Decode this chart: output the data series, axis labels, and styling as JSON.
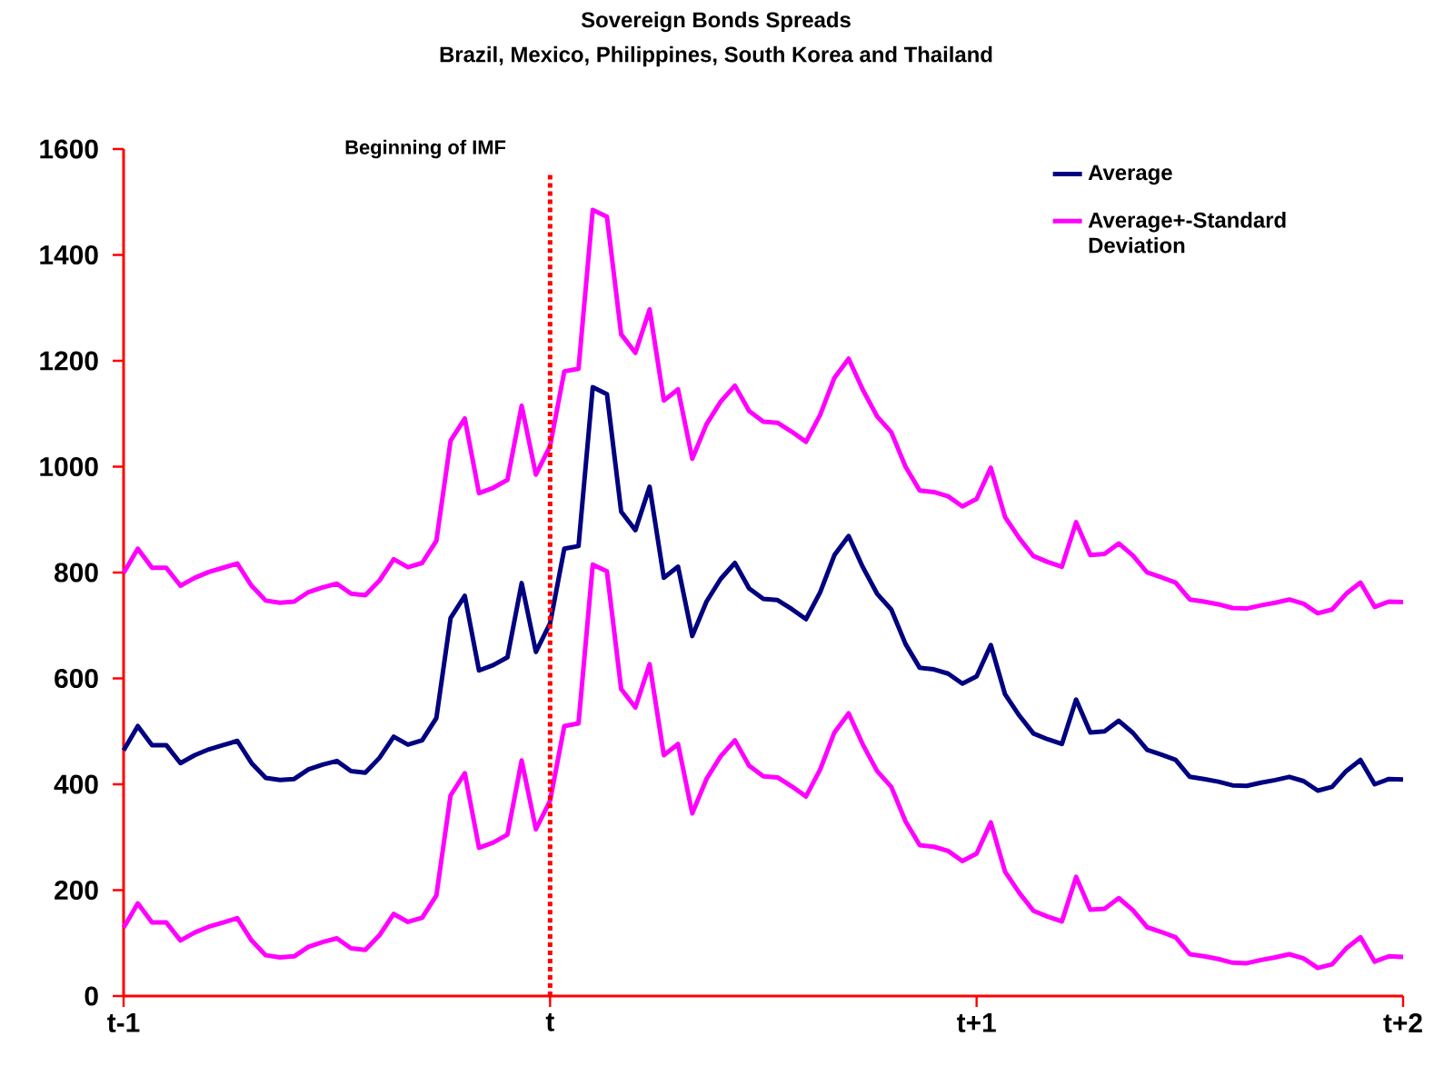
{
  "chart_data": {
    "type": "line",
    "title": "Sovereign Bonds Spreads",
    "subtitle": "Brazil, Mexico, Philippines, South Korea and Thailand",
    "categories": [
      "t-1",
      null,
      null,
      null,
      null,
      null,
      null,
      null,
      null,
      null,
      null,
      null,
      null,
      null,
      null,
      null,
      null,
      null,
      null,
      null,
      null,
      null,
      null,
      null,
      null,
      null,
      null,
      null,
      null,
      null,
      "t",
      null,
      null,
      null,
      null,
      null,
      null,
      null,
      null,
      null,
      null,
      null,
      null,
      null,
      null,
      null,
      null,
      null,
      null,
      null,
      null,
      null,
      null,
      null,
      null,
      null,
      null,
      null,
      null,
      null,
      "t+1",
      null,
      null,
      null,
      null,
      null,
      null,
      null,
      null,
      null,
      null,
      null,
      null,
      null,
      null,
      null,
      null,
      null,
      null,
      null,
      null,
      null,
      null,
      null,
      null,
      null,
      null,
      null,
      null,
      null,
      "t+2"
    ],
    "series": [
      {
        "name": "Average",
        "color": "#000080",
        "values": [
          464,
          510,
          474,
          474,
          440,
          455,
          466,
          474,
          482,
          440,
          412,
          408,
          410,
          428,
          437,
          444,
          425,
          422,
          450,
          490,
          475,
          483,
          525,
          714,
          756,
          615,
          625,
          640,
          780,
          650,
          704,
          845,
          850,
          1150,
          1137,
          915,
          880,
          962,
          790,
          811,
          680,
          745,
          788,
          818,
          770,
          750,
          748,
          731,
          712,
          763,
          833,
          869,
          810,
          760,
          730,
          665,
          620,
          617,
          609,
          590,
          604,
          663,
          570,
          530,
          496,
          485,
          476,
          560,
          498,
          500,
          520,
          497,
          465,
          456,
          446,
          414,
          410,
          405,
          398,
          397,
          403,
          408,
          414,
          406,
          388,
          395,
          425,
          446,
          400,
          410,
          409
        ]
      },
      {
        "name": "Average+-Standard Deviation",
        "color": "#ff00ff",
        "values": [
          799,
          845,
          809,
          809,
          775,
          790,
          801,
          809,
          817,
          775,
          747,
          743,
          745,
          763,
          772,
          779,
          760,
          757,
          785,
          825,
          810,
          818,
          860,
          1049,
          1091,
          950,
          960,
          975,
          1115,
          985,
          1039,
          1180,
          1185,
          1485,
          1472,
          1250,
          1215,
          1297,
          1125,
          1146,
          1015,
          1080,
          1123,
          1153,
          1105,
          1085,
          1083,
          1066,
          1047,
          1098,
          1168,
          1204,
          1145,
          1095,
          1065,
          1000,
          955,
          952,
          944,
          925,
          939,
          998,
          905,
          865,
          831,
          820,
          811,
          895,
          833,
          835,
          855,
          832,
          800,
          791,
          781,
          749,
          745,
          740,
          733,
          732,
          738,
          743,
          749,
          741,
          723,
          730,
          760,
          781,
          735,
          745,
          744
        ]
      },
      {
        "color": "#ff00ff",
        "values": [
          129,
          175,
          139,
          139,
          105,
          120,
          131,
          139,
          147,
          105,
          77,
          73,
          75,
          93,
          102,
          109,
          90,
          87,
          115,
          155,
          140,
          148,
          190,
          379,
          421,
          280,
          290,
          305,
          445,
          315,
          369,
          510,
          515,
          815,
          802,
          580,
          545,
          627,
          455,
          476,
          345,
          410,
          453,
          483,
          435,
          415,
          413,
          396,
          377,
          428,
          498,
          534,
          475,
          425,
          395,
          330,
          285,
          282,
          274,
          255,
          269,
          328,
          235,
          195,
          161,
          150,
          141,
          225,
          163,
          165,
          185,
          162,
          130,
          121,
          111,
          79,
          75,
          70,
          63,
          62,
          68,
          73,
          79,
          71,
          53,
          60,
          90,
          111,
          65,
          75,
          74
        ]
      }
    ],
    "ylim": [
      0,
      1600
    ],
    "yticks": [
      0,
      200,
      400,
      600,
      800,
      1000,
      1200,
      1400,
      1600
    ],
    "ref_lines": [
      {
        "axis": "x",
        "value": "t",
        "label": "Beginning of IMF",
        "color": "#ff0000",
        "line_style": "dotted"
      }
    ],
    "grid": false,
    "legend": "top right"
  }
}
